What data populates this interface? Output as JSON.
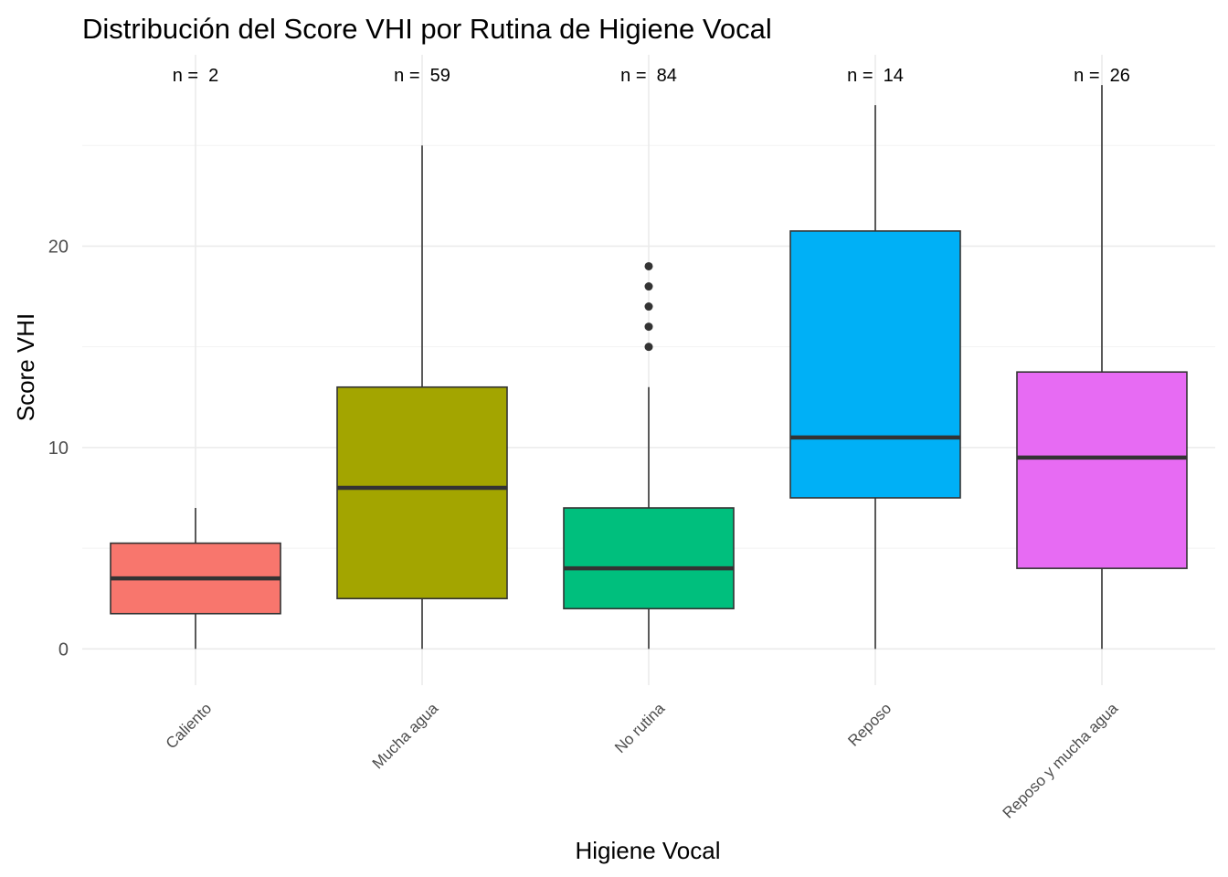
{
  "chart_data": {
    "type": "boxplot",
    "title": "Distribución del Score VHI por Rutina de Higiene Vocal",
    "xlabel": "Higiene Vocal",
    "ylabel": "Score VHI",
    "ylim": [
      -1.8,
      29.5
    ],
    "yticks": [
      0,
      10,
      20
    ],
    "grid": true,
    "categories": [
      "Caliento",
      "Mucha agua",
      "No rutina",
      "Reposo",
      "Reposo y mucha agua"
    ],
    "boxes": [
      {
        "name": "Caliento",
        "n_label": "n =  2",
        "min": 0,
        "q1": 1.75,
        "median": 3.5,
        "q3": 5.25,
        "max": 7,
        "outliers": [],
        "color": "#F8766D"
      },
      {
        "name": "Mucha agua",
        "n_label": "n =  59",
        "min": 0,
        "q1": 2.5,
        "median": 8,
        "q3": 13,
        "max": 25,
        "outliers": [],
        "color": "#A3A500"
      },
      {
        "name": "No rutina",
        "n_label": "n =  84",
        "min": 0,
        "q1": 2,
        "median": 4,
        "q3": 7,
        "max": 13,
        "outliers": [
          15,
          16,
          17,
          18,
          19
        ],
        "color": "#00BF7D"
      },
      {
        "name": "Reposo",
        "n_label": "n =  14",
        "min": 0,
        "q1": 7.5,
        "median": 10.5,
        "q3": 20.75,
        "max": 27,
        "outliers": [],
        "color": "#00B0F6"
      },
      {
        "name": "Reposo y mucha agua",
        "n_label": "n =  26",
        "min": 0,
        "q1": 4,
        "median": 9.5,
        "q3": 13.75,
        "max": 28,
        "outliers": [],
        "color": "#E76BF3"
      }
    ]
  }
}
